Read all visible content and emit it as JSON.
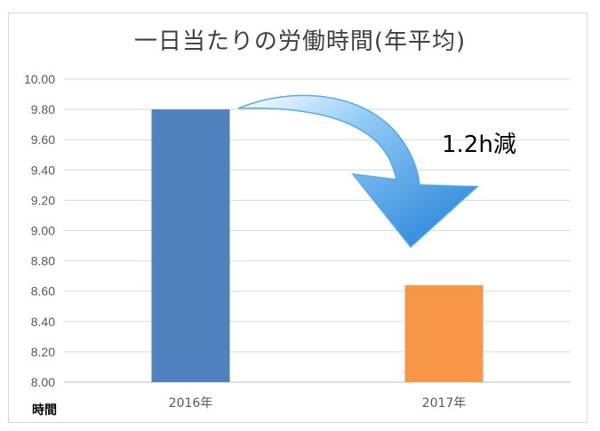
{
  "chart_data": {
    "type": "bar",
    "title": "一日当たりの労働時間(年平均)",
    "categories": [
      "2016年",
      "2017年"
    ],
    "values": [
      9.8,
      8.64
    ],
    "colors": [
      "#4f81bd",
      "#f79646"
    ],
    "ylim": [
      8.0,
      10.0
    ],
    "yticks": [
      "8.00",
      "8.20",
      "8.40",
      "8.60",
      "8.80",
      "9.00",
      "9.20",
      "9.40",
      "9.60",
      "9.80",
      "10.00"
    ],
    "ylabel": "時間",
    "xlabel": "",
    "grid": true,
    "legend": "none",
    "annotation": "1.2h減",
    "arrow_color": "#2f8fe0"
  }
}
